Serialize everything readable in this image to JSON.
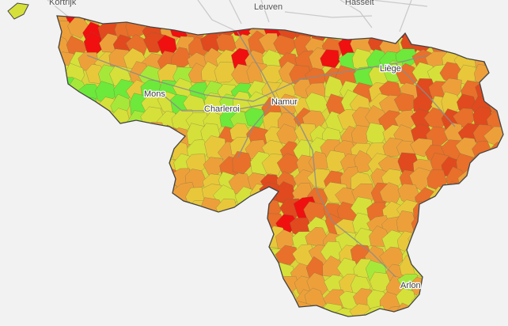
{
  "map": {
    "cities": [
      {
        "name": "Mons"
      },
      {
        "name": "Charleroi"
      },
      {
        "name": "Namur"
      },
      {
        "name": "Liège"
      },
      {
        "name": "Arlon"
      }
    ],
    "basemap_labels": [
      {
        "name": "Kortrijk"
      },
      {
        "name": "Leuven"
      },
      {
        "name": "Hasselt"
      }
    ],
    "colors": {
      "background": "#f2f2f2",
      "border": "#555555",
      "road": "#9a9a9a",
      "scale": [
        "#6ce93a",
        "#a6e83a",
        "#d6e03a",
        "#e8c83a",
        "#eda03a",
        "#e8702a",
        "#e04a1e",
        "#f01010"
      ]
    }
  }
}
